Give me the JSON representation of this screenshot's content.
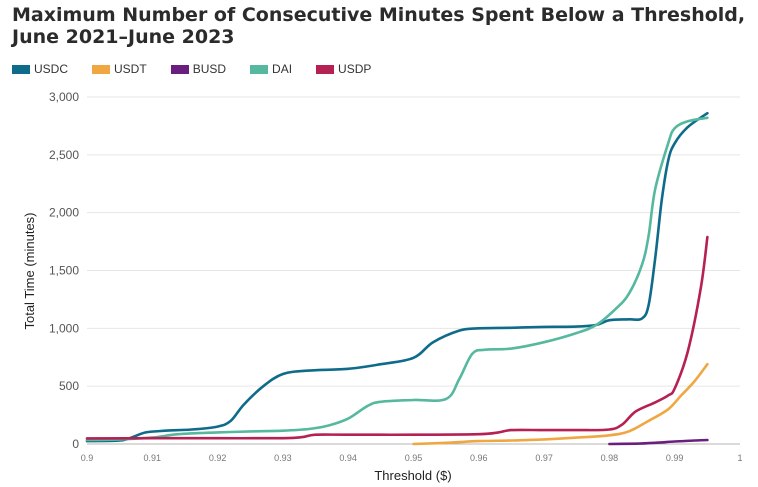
{
  "chart_data": {
    "type": "line",
    "title_lines": [
      "Maximum Number of Consecutive Minutes Spent Below a Threshold,",
      "June 2021–June 2023"
    ],
    "xlabel": "Threshold ($)",
    "ylabel": "Total Time (minutes)",
    "xlim": [
      0.9,
      1.0
    ],
    "ylim": [
      0,
      3000
    ],
    "x_ticks": [
      "0.9",
      "0.91",
      "0.92",
      "0.93",
      "0.94",
      "0.95",
      "0.96",
      "0.97",
      "0.98",
      "0.99",
      "1"
    ],
    "y_ticks": [
      "0",
      "500",
      "1,000",
      "1,500",
      "2,000",
      "2,500",
      "3,000"
    ],
    "grid": "horizontal",
    "legend_position": "top-left",
    "series": [
      {
        "name": "USDC",
        "color": "#0e6b8a",
        "points": [
          [
            0.9,
            25
          ],
          [
            0.905,
            30
          ],
          [
            0.907,
            60
          ],
          [
            0.909,
            100
          ],
          [
            0.912,
            115
          ],
          [
            0.916,
            125
          ],
          [
            0.92,
            150
          ],
          [
            0.922,
            200
          ],
          [
            0.924,
            340
          ],
          [
            0.927,
            500
          ],
          [
            0.93,
            605
          ],
          [
            0.934,
            635
          ],
          [
            0.94,
            650
          ],
          [
            0.945,
            690
          ],
          [
            0.95,
            745
          ],
          [
            0.953,
            880
          ],
          [
            0.957,
            980
          ],
          [
            0.96,
            1000
          ],
          [
            0.965,
            1005
          ],
          [
            0.97,
            1012
          ],
          [
            0.975,
            1015
          ],
          [
            0.978,
            1030
          ],
          [
            0.98,
            1070
          ],
          [
            0.983,
            1078
          ],
          [
            0.985,
            1085
          ],
          [
            0.986,
            1200
          ],
          [
            0.987,
            1600
          ],
          [
            0.988,
            2100
          ],
          [
            0.989,
            2450
          ],
          [
            0.99,
            2600
          ],
          [
            0.992,
            2740
          ],
          [
            0.995,
            2860
          ]
        ]
      },
      {
        "name": "USDT",
        "color": "#f0a742",
        "points": [
          [
            0.95,
            0
          ],
          [
            0.955,
            10
          ],
          [
            0.96,
            25
          ],
          [
            0.965,
            30
          ],
          [
            0.97,
            40
          ],
          [
            0.975,
            55
          ],
          [
            0.98,
            75
          ],
          [
            0.983,
            110
          ],
          [
            0.986,
            200
          ],
          [
            0.989,
            300
          ],
          [
            0.991,
            420
          ],
          [
            0.993,
            540
          ],
          [
            0.995,
            690
          ]
        ]
      },
      {
        "name": "BUSD",
        "color": "#6a1f7e",
        "points": [
          [
            0.98,
            0
          ],
          [
            0.984,
            3
          ],
          [
            0.987,
            10
          ],
          [
            0.99,
            22
          ],
          [
            0.993,
            30
          ],
          [
            0.995,
            35
          ]
        ]
      },
      {
        "name": "DAI",
        "color": "#56b89e",
        "points": [
          [
            0.9,
            35
          ],
          [
            0.905,
            40
          ],
          [
            0.91,
            55
          ],
          [
            0.914,
            85
          ],
          [
            0.92,
            100
          ],
          [
            0.926,
            110
          ],
          [
            0.93,
            115
          ],
          [
            0.934,
            130
          ],
          [
            0.937,
            160
          ],
          [
            0.94,
            220
          ],
          [
            0.943,
            330
          ],
          [
            0.945,
            365
          ],
          [
            0.95,
            380
          ],
          [
            0.955,
            390
          ],
          [
            0.957,
            560
          ],
          [
            0.959,
            780
          ],
          [
            0.961,
            815
          ],
          [
            0.965,
            825
          ],
          [
            0.97,
            880
          ],
          [
            0.975,
            960
          ],
          [
            0.978,
            1030
          ],
          [
            0.981,
            1170
          ],
          [
            0.983,
            1300
          ],
          [
            0.985,
            1550
          ],
          [
            0.986,
            1800
          ],
          [
            0.987,
            2200
          ],
          [
            0.989,
            2600
          ],
          [
            0.99,
            2730
          ],
          [
            0.992,
            2790
          ],
          [
            0.995,
            2820
          ]
        ]
      },
      {
        "name": "USDP",
        "color": "#b52152",
        "points": [
          [
            0.9,
            48
          ],
          [
            0.91,
            50
          ],
          [
            0.92,
            50
          ],
          [
            0.93,
            50
          ],
          [
            0.933,
            60
          ],
          [
            0.935,
            80
          ],
          [
            0.94,
            80
          ],
          [
            0.95,
            80
          ],
          [
            0.96,
            85
          ],
          [
            0.963,
            100
          ],
          [
            0.965,
            120
          ],
          [
            0.97,
            120
          ],
          [
            0.975,
            120
          ],
          [
            0.98,
            125
          ],
          [
            0.982,
            170
          ],
          [
            0.984,
            280
          ],
          [
            0.987,
            360
          ],
          [
            0.989,
            420
          ],
          [
            0.99,
            480
          ],
          [
            0.992,
            800
          ],
          [
            0.994,
            1350
          ],
          [
            0.995,
            1790
          ]
        ]
      }
    ]
  }
}
